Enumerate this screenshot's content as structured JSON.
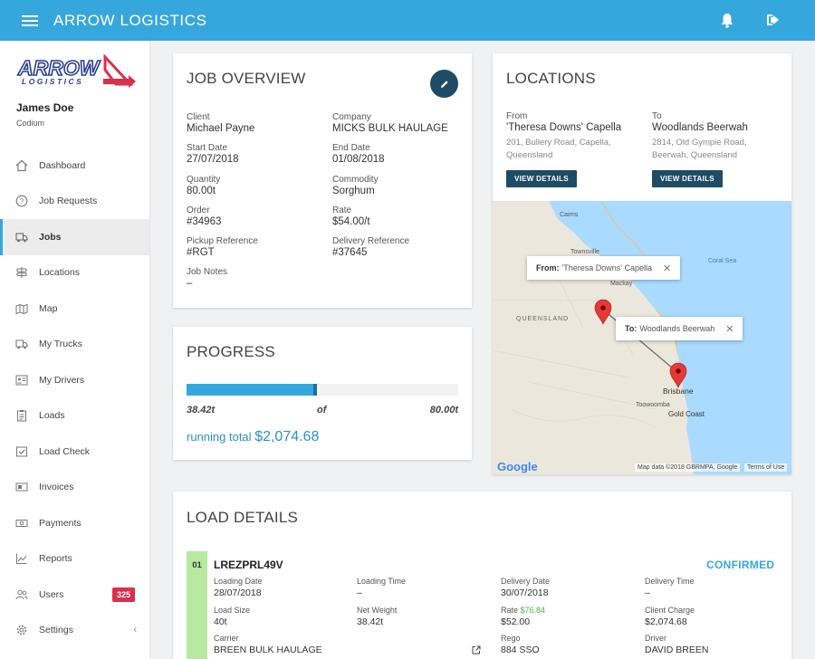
{
  "app": {
    "title": "ARROW LOGISTICS"
  },
  "brand": {
    "logo_top": "ARROW",
    "logo_bottom": "LOGISTICS",
    "accent": "#36a7dd",
    "dark": "#1e4b66",
    "logo_red": "#d9304c"
  },
  "user": {
    "name": "James Doe",
    "org": "Codium"
  },
  "sidebar": {
    "items": [
      {
        "label": "Dashboard",
        "icon": "home-icon"
      },
      {
        "label": "Job Requests",
        "icon": "question-icon"
      },
      {
        "label": "Jobs",
        "icon": "truck-icon",
        "active": true
      },
      {
        "label": "Locations",
        "icon": "signpost-icon"
      },
      {
        "label": "Map",
        "icon": "map-icon"
      },
      {
        "label": "My Trucks",
        "icon": "truck-icon"
      },
      {
        "label": "My Drivers",
        "icon": "id-card-icon"
      },
      {
        "label": "Loads",
        "icon": "clipboard-icon"
      },
      {
        "label": "Load Check",
        "icon": "check-icon"
      },
      {
        "label": "Invoices",
        "icon": "invoice-icon"
      },
      {
        "label": "Payments",
        "icon": "money-icon"
      },
      {
        "label": "Reports",
        "icon": "chart-icon"
      },
      {
        "label": "Users",
        "icon": "users-icon",
        "badge": "325"
      },
      {
        "label": "Settings",
        "icon": "gear-icon"
      }
    ]
  },
  "job_overview": {
    "title": "JOB OVERVIEW",
    "fields": [
      {
        "label": "Client",
        "value": "Michael Payne"
      },
      {
        "label": "Company",
        "value": "MICKS BULK HAULAGE"
      },
      {
        "label": "Start Date",
        "value": "27/07/2018"
      },
      {
        "label": "End Date",
        "value": "01/08/2018"
      },
      {
        "label": "Quantity",
        "value": "80.00t"
      },
      {
        "label": "Commodity",
        "value": "Sorghum"
      },
      {
        "label": "Order",
        "value": "#34963"
      },
      {
        "label": "Rate",
        "value": "$54.00/t"
      },
      {
        "label": "Pickup Reference",
        "value": "#RGT"
      },
      {
        "label": "Delivery Reference",
        "value": "#37645"
      },
      {
        "label": "Job Notes",
        "value": "–"
      }
    ]
  },
  "progress": {
    "title": "PROGRESS",
    "done": "38.42t",
    "of": "of",
    "total": "80.00t",
    "fraction": 0.48,
    "running_label": "running total",
    "running_value": "$2,074.68"
  },
  "locations": {
    "title": "LOCATIONS",
    "from": {
      "label": "From",
      "name": "'Theresa Downs' Capella",
      "addr1": "201, Bullery Road, Capella,",
      "addr2": "Queensland",
      "button": "VIEW DETAILS"
    },
    "to": {
      "label": "To",
      "name": "Woodlands Beerwah",
      "addr1": "2814, Old Gympie Road,",
      "addr2": "Beerwah, Queensland",
      "button": "VIEW DETAILS"
    },
    "map": {
      "popup_from_label": "From:",
      "popup_from_value": "'Theresa Downs' Capella",
      "popup_to_label": "To:",
      "popup_to_value": "Woodlands Beerwah",
      "place_cairns": "Cairns",
      "place_townsville": "Townsville",
      "place_mackay": "Mackay",
      "place_queensland": "QUEENSLAND",
      "place_coralsea": "Coral Sea",
      "place_brisbane": "Brisbane",
      "place_toowoomba": "Toowoomba",
      "place_goldcoast": "Gold Coast",
      "google": "Google",
      "attribution": "Map data ©2018 GBRMPA, Google",
      "terms": "Terms of Use"
    }
  },
  "load_details": {
    "title": "LOAD DETAILS",
    "load": {
      "number": "01",
      "id": "LREZPRL49V",
      "status": "CONFIRMED",
      "loading_date_label": "Loading Date",
      "loading_date": "28/07/2018",
      "loading_time_label": "Loading Time",
      "loading_time": "–",
      "delivery_date_label": "Delivery Date",
      "delivery_date": "30/07/2018",
      "delivery_time_label": "Delivery Time",
      "delivery_time": "–",
      "load_size_label": "Load Size",
      "load_size": "40t",
      "net_weight_label": "Net Weight",
      "net_weight": "38.42t",
      "rate_label": "Rate",
      "rate_alt": "$76.84",
      "rate": "$52.00",
      "client_charge_label": "Client Charge",
      "client_charge": "$2,074.68",
      "carrier_label": "Carrier",
      "carrier": "BREEN BULK HAULAGE",
      "rego_label": "Rego",
      "rego": "884 SSO",
      "driver_label": "Driver",
      "driver": "DAVID BREEN"
    }
  }
}
